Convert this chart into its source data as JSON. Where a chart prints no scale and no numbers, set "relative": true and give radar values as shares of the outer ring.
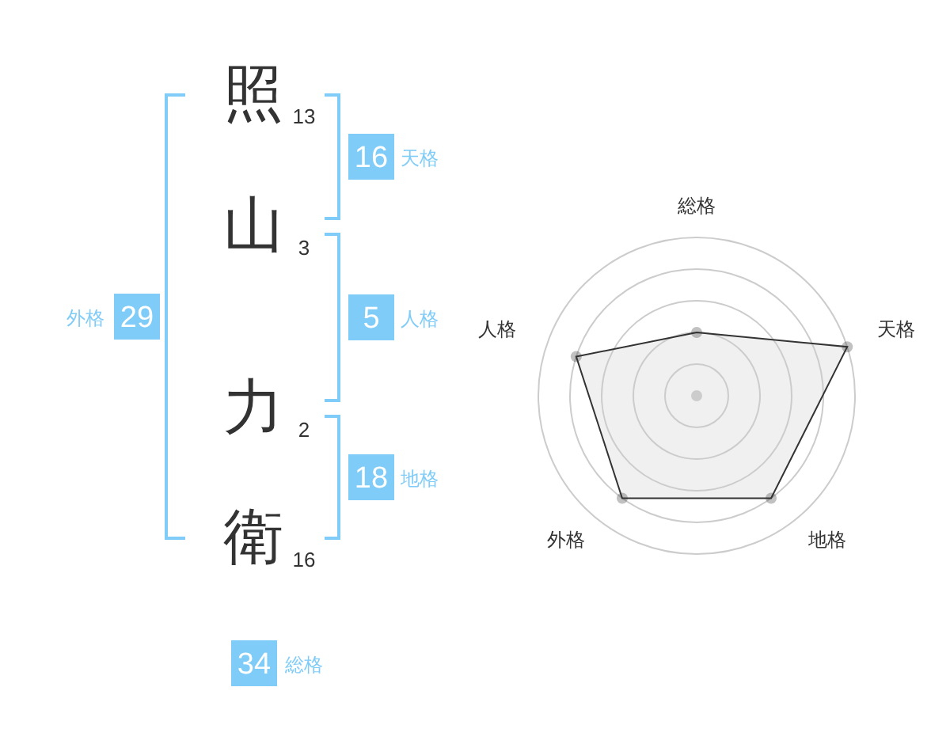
{
  "chart_data": [
    {
      "type": "other",
      "categories": [
        "照",
        "山",
        "力",
        "衛"
      ],
      "values": [
        13,
        3,
        2,
        16
      ],
      "data_labels": true
    },
    {
      "type": "other",
      "categories": [
        "天格",
        "人格",
        "地格",
        "外格",
        "総格"
      ],
      "values": [
        16,
        5,
        18,
        29,
        34
      ],
      "color": "#80ccf8",
      "data_labels": true
    },
    {
      "type": "radar",
      "categories": [
        "総格",
        "天格",
        "地格",
        "外格",
        "人格"
      ],
      "values": [
        0.4,
        1,
        0.8,
        0.8,
        0.8
      ],
      "color": "#333333",
      "relative": true,
      "grid": true,
      "marker": "circle"
    }
  ]
}
